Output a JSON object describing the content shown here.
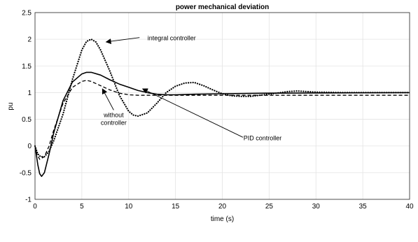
{
  "chart_data": {
    "type": "line",
    "title": "power mechanical deviation",
    "xlabel": "time (s)",
    "ylabel": "pu",
    "xlim": [
      0,
      40
    ],
    "ylim": [
      -1,
      2.5
    ],
    "xticks": [
      0,
      5,
      10,
      15,
      20,
      25,
      30,
      35,
      40
    ],
    "yticks": [
      -1,
      -0.5,
      0,
      0.5,
      1,
      1.5,
      2,
      2.5
    ],
    "grid": true,
    "series": [
      {
        "style": "dotted",
        "points": [
          [
            0,
            0
          ],
          [
            0.3,
            -0.15
          ],
          [
            0.6,
            -0.2
          ],
          [
            1,
            -0.2
          ],
          [
            1.5,
            -0.1
          ],
          [
            2,
            0.1
          ],
          [
            3,
            0.6
          ],
          [
            4,
            1.25
          ],
          [
            5,
            1.8
          ],
          [
            5.5,
            1.96
          ],
          [
            6,
            2.0
          ],
          [
            6.5,
            1.95
          ],
          [
            7,
            1.8
          ],
          [
            8,
            1.4
          ],
          [
            9,
            0.95
          ],
          [
            10,
            0.65
          ],
          [
            10.5,
            0.58
          ],
          [
            11,
            0.56
          ],
          [
            12,
            0.62
          ],
          [
            13,
            0.8
          ],
          [
            14,
            1.0
          ],
          [
            15,
            1.12
          ],
          [
            16,
            1.18
          ],
          [
            17,
            1.19
          ],
          [
            18,
            1.13
          ],
          [
            19,
            1.05
          ],
          [
            20,
            0.98
          ],
          [
            21,
            0.94
          ],
          [
            22,
            0.93
          ],
          [
            23,
            0.93
          ],
          [
            24,
            0.95
          ],
          [
            25,
            0.97
          ],
          [
            27,
            1.02
          ],
          [
            28,
            1.03
          ],
          [
            30,
            1.01
          ],
          [
            33,
            1.0
          ],
          [
            40,
            1.0
          ]
        ]
      },
      {
        "style": "solid",
        "points": [
          [
            0,
            0
          ],
          [
            0.3,
            -0.35
          ],
          [
            0.5,
            -0.52
          ],
          [
            0.7,
            -0.57
          ],
          [
            1,
            -0.5
          ],
          [
            1.5,
            -0.15
          ],
          [
            2,
            0.25
          ],
          [
            3,
            0.85
          ],
          [
            4,
            1.2
          ],
          [
            5,
            1.35
          ],
          [
            5.5,
            1.38
          ],
          [
            6,
            1.38
          ],
          [
            7,
            1.33
          ],
          [
            8,
            1.24
          ],
          [
            9,
            1.16
          ],
          [
            10,
            1.1
          ],
          [
            11,
            1.04
          ],
          [
            12,
            1.0
          ],
          [
            13,
            0.97
          ],
          [
            14,
            0.96
          ],
          [
            15,
            0.96
          ],
          [
            17,
            0.97
          ],
          [
            20,
            0.98
          ],
          [
            25,
            0.99
          ],
          [
            40,
            1.0
          ]
        ]
      },
      {
        "style": "dashed",
        "points": [
          [
            0,
            0
          ],
          [
            0.2,
            -0.15
          ],
          [
            0.5,
            -0.25
          ],
          [
            1,
            -0.2
          ],
          [
            1.5,
            0.0
          ],
          [
            2,
            0.3
          ],
          [
            3,
            0.8
          ],
          [
            4,
            1.1
          ],
          [
            5,
            1.21
          ],
          [
            5.5,
            1.23
          ],
          [
            6,
            1.21
          ],
          [
            7,
            1.13
          ],
          [
            8,
            1.05
          ],
          [
            9,
            0.99
          ],
          [
            10,
            0.96
          ],
          [
            11,
            0.95
          ],
          [
            12,
            0.95
          ],
          [
            15,
            0.95
          ],
          [
            20,
            0.95
          ],
          [
            25,
            0.95
          ],
          [
            40,
            0.95
          ]
        ]
      }
    ],
    "annotations": [
      {
        "name": "integral",
        "text": "integral controller",
        "text_at": [
          14.6,
          1.98
        ],
        "arrow_to": [
          7.6,
          1.95
        ]
      },
      {
        "name": "without",
        "lines": [
          "without",
          "controller"
        ],
        "text_at": [
          8.4,
          0.47
        ],
        "arrow_to": [
          7.2,
          1.07
        ]
      },
      {
        "name": "pid",
        "text": "PID controller",
        "text_at": [
          24.3,
          0.11
        ],
        "arrow_to": [
          11.5,
          1.07
        ]
      }
    ]
  }
}
